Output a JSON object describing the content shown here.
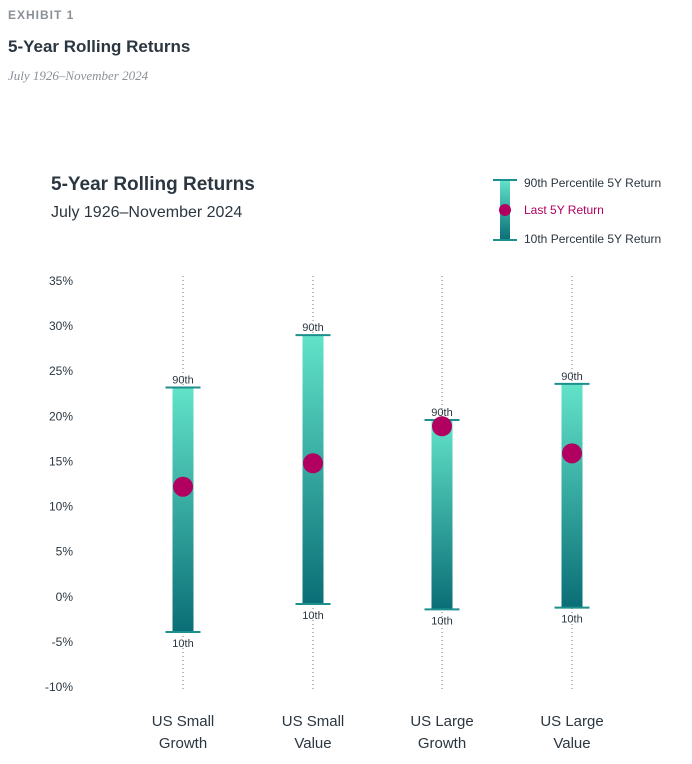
{
  "header": {
    "exhibit": "EXHIBIT 1",
    "title": "5-Year Rolling Returns",
    "subtitle": "July 1926–November 2024"
  },
  "colors": {
    "bar_top": "#62e3c9",
    "bar_bottom": "#0a6e76",
    "cap": "#1d8f8c",
    "marker": "#b1005f",
    "text": "#2b3640",
    "dotted_line": "#777777"
  },
  "chart_data": {
    "type": "range_bar",
    "title": "5-Year Rolling Returns",
    "subtitle": "July 1926–November 2024",
    "ylim": [
      -10,
      35
    ],
    "y_ticks": [
      -10,
      -5,
      0,
      5,
      10,
      15,
      20,
      25,
      30,
      35
    ],
    "y_tick_labels": [
      "-10%",
      "-5%",
      "0%",
      "5%",
      "10%",
      "15%",
      "20%",
      "25%",
      "30%",
      "35%"
    ],
    "grid": false,
    "legend_position": "top-right",
    "legend": {
      "p90": "90th Percentile 5Y Return",
      "last": "Last 5Y Return",
      "p10": "10th Percentile 5Y Return"
    },
    "high_label": "90th",
    "low_label": "10th",
    "categories": [
      {
        "line1": "US Small",
        "line2": "Growth",
        "p90": 23.2,
        "p10": -3.9,
        "last": 12.2
      },
      {
        "line1": "US Small",
        "line2": "Value",
        "p90": 29.0,
        "p10": -0.8,
        "last": 14.8
      },
      {
        "line1": "US Large",
        "line2": "Growth",
        "p90": 19.6,
        "p10": -1.4,
        "last": 18.9
      },
      {
        "line1": "US Large",
        "line2": "Value",
        "p90": 23.6,
        "p10": -1.2,
        "last": 15.9
      }
    ]
  }
}
